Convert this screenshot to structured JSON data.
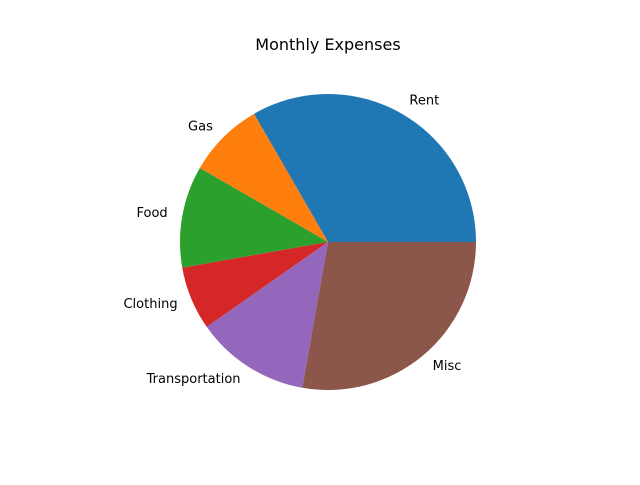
{
  "chart_data": {
    "type": "pie",
    "title": "Monthly Expenses",
    "categories": [
      "Rent",
      "Gas",
      "Food",
      "Clothing",
      "Transportation",
      "Misc"
    ],
    "values": [
      1200,
      300,
      400,
      250,
      450,
      1000
    ],
    "colors": [
      "#1f77b4",
      "#ff7f0e",
      "#2ca02c",
      "#d62728",
      "#9467bd",
      "#8c564b"
    ],
    "start_angle_deg": 0,
    "direction": "counterclockwise",
    "legend": "none",
    "xlabel": "",
    "ylabel": ""
  }
}
